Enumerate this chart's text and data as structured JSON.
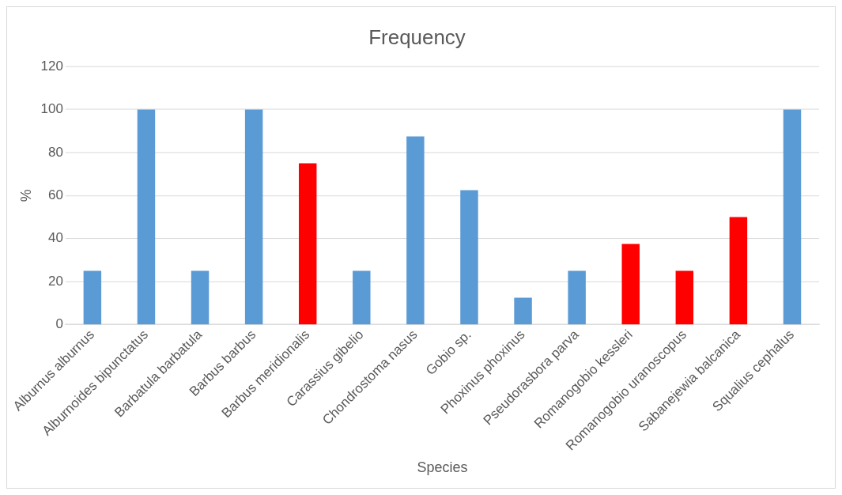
{
  "chart_data": {
    "type": "bar",
    "title": "Frequency",
    "xlabel": "Species",
    "ylabel": "%",
    "categories": [
      "Alburnus alburnus",
      "Alburnoides bipunctatus",
      "Barbatula barbatula",
      "Barbus barbus",
      "Barbus meridionalis",
      "Carassius gibelio",
      "Chondrostoma nasus",
      "Gobio sp.",
      "Phoxinus phoxinus",
      "Pseudorasbora parva",
      "Romanogobio kessleri",
      "Romanogobio uranoscopus",
      "Sabanejewia balcanica",
      "Squalius cephalus"
    ],
    "values": [
      25,
      100,
      25,
      100,
      75,
      25,
      87.5,
      62.5,
      12.5,
      25,
      37.5,
      25,
      50,
      100
    ],
    "colors": [
      "#5b9bd5",
      "#5b9bd5",
      "#5b9bd5",
      "#5b9bd5",
      "#ff0000",
      "#5b9bd5",
      "#5b9bd5",
      "#5b9bd5",
      "#5b9bd5",
      "#5b9bd5",
      "#ff0000",
      "#ff0000",
      "#ff0000",
      "#5b9bd5"
    ],
    "ylim": [
      0,
      120
    ],
    "yticks": [
      0,
      20,
      40,
      60,
      80,
      100,
      120
    ],
    "grid": "y"
  }
}
